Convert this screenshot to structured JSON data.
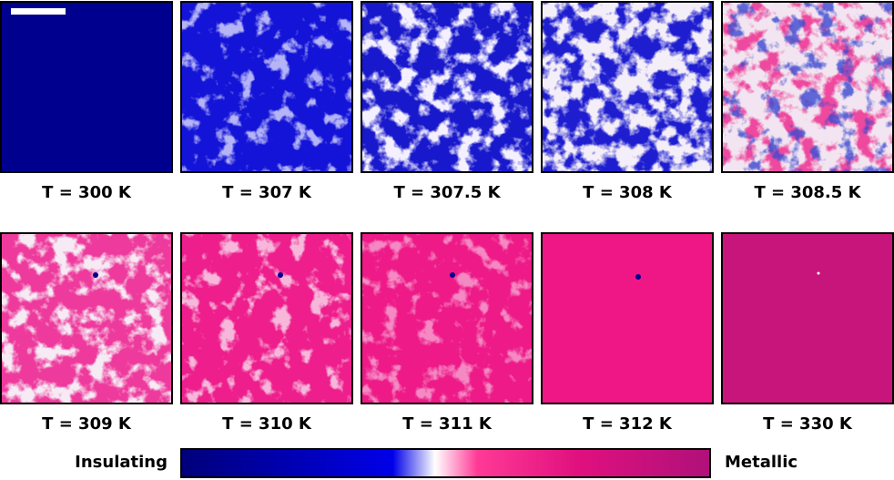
{
  "panels": [
    {
      "label": "T = 300 K"
    },
    {
      "label": "T = 307 K"
    },
    {
      "label": "T = 307.5 K"
    },
    {
      "label": "T = 308 K"
    },
    {
      "label": "T = 308.5 K"
    },
    {
      "label": "T = 309 K"
    },
    {
      "label": "T = 310 K"
    },
    {
      "label": "T = 311 K"
    },
    {
      "label": "T = 312 K"
    },
    {
      "label": "T = 330 K"
    }
  ],
  "colorbar": {
    "min_label": "Insulating",
    "max_label": "Metallic"
  }
}
